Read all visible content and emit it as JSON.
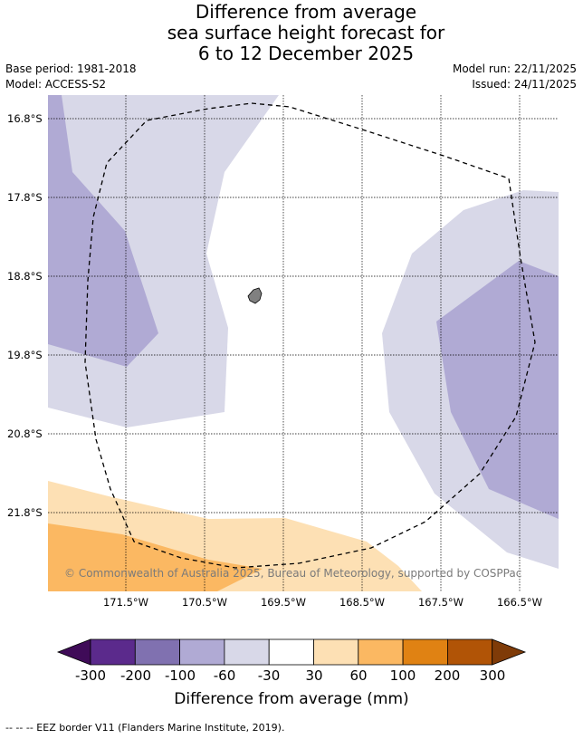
{
  "title": {
    "line1": "Difference from average",
    "line2": "sea surface height forecast for",
    "line3": "6 to 12 December 2025"
  },
  "meta": {
    "base_period": "Base period: 1981-2018",
    "model": "Model: ACCESS-S2",
    "model_run": "Model run: 22/11/2025",
    "issued": "Issued: 24/11/2025"
  },
  "map": {
    "latitudes": [
      "16.8°S",
      "17.8°S",
      "18.8°S",
      "19.8°S",
      "20.8°S",
      "21.8°S"
    ],
    "longitudes": [
      "171.5°W",
      "170.5°W",
      "169.5°W",
      "168.5°W",
      "167.5°W",
      "166.5°W"
    ],
    "attribution": "© Commonwealth of Australia 2025, Bureau of Meteorology, supported by COSPPac",
    "colors": {
      "neg_light": "#d8d8e8",
      "neg_mid": "#b0aad4",
      "pos_light": "#fde0b4",
      "pos_mid": "#fbb862",
      "land": "#808080"
    }
  },
  "colorbar": {
    "title": "Difference from average (mm)",
    "ticks": [
      "-300",
      "-200",
      "-100",
      "-60",
      "-30",
      "30",
      "60",
      "100",
      "200",
      "300"
    ],
    "colors": [
      "#3f0b58",
      "#5b2a8c",
      "#8071b0",
      "#b0aad4",
      "#d8d8e8",
      "#ffffff",
      "#fde0b4",
      "#fbb862",
      "#e08213",
      "#b15406",
      "#7f3b08"
    ]
  },
  "footer": "--  --  -- EEZ border V11 (Flanders Marine Institute, 2019)."
}
